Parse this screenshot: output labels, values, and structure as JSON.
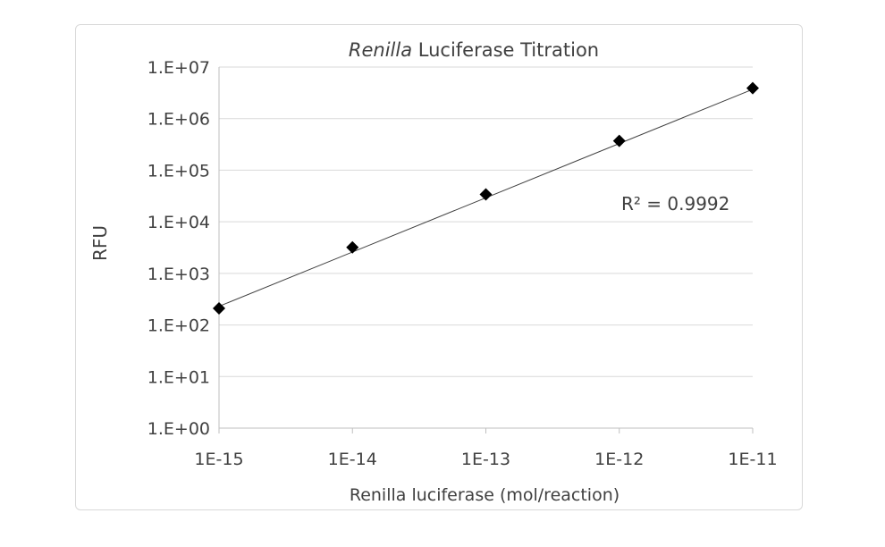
{
  "chart_data": {
    "type": "scatter",
    "title_italic": "Renilla",
    "title_rest": " Luciferase Titration",
    "xlabel": "Renilla luciferase (mol/reaction)",
    "ylabel": "RFU",
    "x_scale": "log",
    "y_scale": "log",
    "x_ticks": [
      "1E-15",
      "1E-14",
      "1E-13",
      "1E-12",
      "1E-11"
    ],
    "y_ticks": [
      "1.E+00",
      "1.E+01",
      "1.E+02",
      "1.E+03",
      "1.E+04",
      "1.E+05",
      "1.E+06",
      "1.E+07"
    ],
    "xlim": [
      1e-15,
      1e-11
    ],
    "ylim": [
      1,
      10000000
    ],
    "grid": "horizontal",
    "marker": "diamond",
    "series": [
      {
        "points": [
          {
            "x": 1e-15,
            "y": 210
          },
          {
            "x": 1e-14,
            "y": 3200
          },
          {
            "x": 1e-13,
            "y": 34000
          },
          {
            "x": 1e-12,
            "y": 370000
          },
          {
            "x": 1e-11,
            "y": 3900000
          }
        ]
      }
    ],
    "trendline": {
      "type": "power",
      "x": [
        1e-15,
        1e-11
      ],
      "y": [
        230,
        3700000
      ]
    },
    "annotation": "R² = 0.9992"
  },
  "colors": {
    "marker": "#000000",
    "trendline": "#404040",
    "grid": "#d9d9d9",
    "axis": "#bfbfbf",
    "text": "#404040"
  }
}
